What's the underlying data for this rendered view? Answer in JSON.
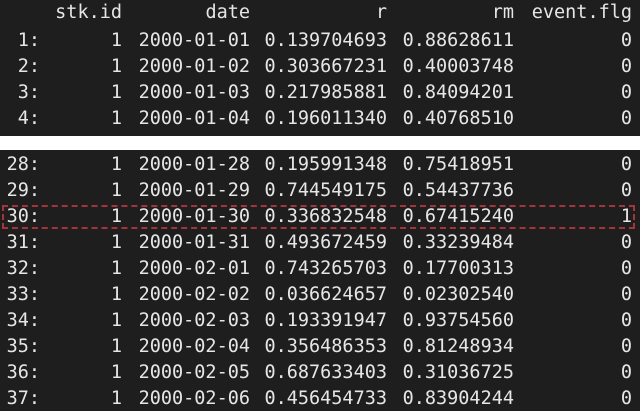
{
  "table": {
    "columns": [
      "",
      "stk.id",
      "date",
      "r",
      "rm",
      "event.flg"
    ],
    "top_rows": [
      {
        "idx": "1:",
        "stk_id": "1",
        "date": "2000-01-01",
        "r": "0.139704693",
        "rm": "0.88628611",
        "event_flg": "0"
      },
      {
        "idx": "2:",
        "stk_id": "1",
        "date": "2000-01-02",
        "r": "0.303667231",
        "rm": "0.40003748",
        "event_flg": "0"
      },
      {
        "idx": "3:",
        "stk_id": "1",
        "date": "2000-01-03",
        "r": "0.217985881",
        "rm": "0.84094201",
        "event_flg": "0"
      },
      {
        "idx": "4:",
        "stk_id": "1",
        "date": "2000-01-04",
        "r": "0.196011340",
        "rm": "0.40768510",
        "event_flg": "0"
      }
    ],
    "bottom_rows": [
      {
        "idx": "28:",
        "stk_id": "1",
        "date": "2000-01-28",
        "r": "0.195991348",
        "rm": "0.75418951",
        "event_flg": "0"
      },
      {
        "idx": "29:",
        "stk_id": "1",
        "date": "2000-01-29",
        "r": "0.744549175",
        "rm": "0.54437736",
        "event_flg": "0"
      },
      {
        "idx": "30:",
        "stk_id": "1",
        "date": "2000-01-30",
        "r": "0.336832548",
        "rm": "0.67415240",
        "event_flg": "1"
      },
      {
        "idx": "31:",
        "stk_id": "1",
        "date": "2000-01-31",
        "r": "0.493672459",
        "rm": "0.33239484",
        "event_flg": "0"
      },
      {
        "idx": "32:",
        "stk_id": "1",
        "date": "2000-02-01",
        "r": "0.743265703",
        "rm": "0.17700313",
        "event_flg": "0"
      },
      {
        "idx": "33:",
        "stk_id": "1",
        "date": "2000-02-02",
        "r": "0.036624657",
        "rm": "0.02302540",
        "event_flg": "0"
      },
      {
        "idx": "34:",
        "stk_id": "1",
        "date": "2000-02-03",
        "r": "0.193391947",
        "rm": "0.93754560",
        "event_flg": "0"
      },
      {
        "idx": "35:",
        "stk_id": "1",
        "date": "2000-02-04",
        "r": "0.356486353",
        "rm": "0.81248934",
        "event_flg": "0"
      },
      {
        "idx": "36:",
        "stk_id": "1",
        "date": "2000-02-05",
        "r": "0.687633403",
        "rm": "0.31036725",
        "event_flg": "0"
      },
      {
        "idx": "37:",
        "stk_id": "1",
        "date": "2000-02-06",
        "r": "0.456454733",
        "rm": "0.83904244",
        "event_flg": "0"
      }
    ],
    "highlighted_row_idx": "30:"
  },
  "colors": {
    "console_bg": "#1e1e1e",
    "text": "#e6e6e6",
    "highlight_border": "#a4343a"
  }
}
